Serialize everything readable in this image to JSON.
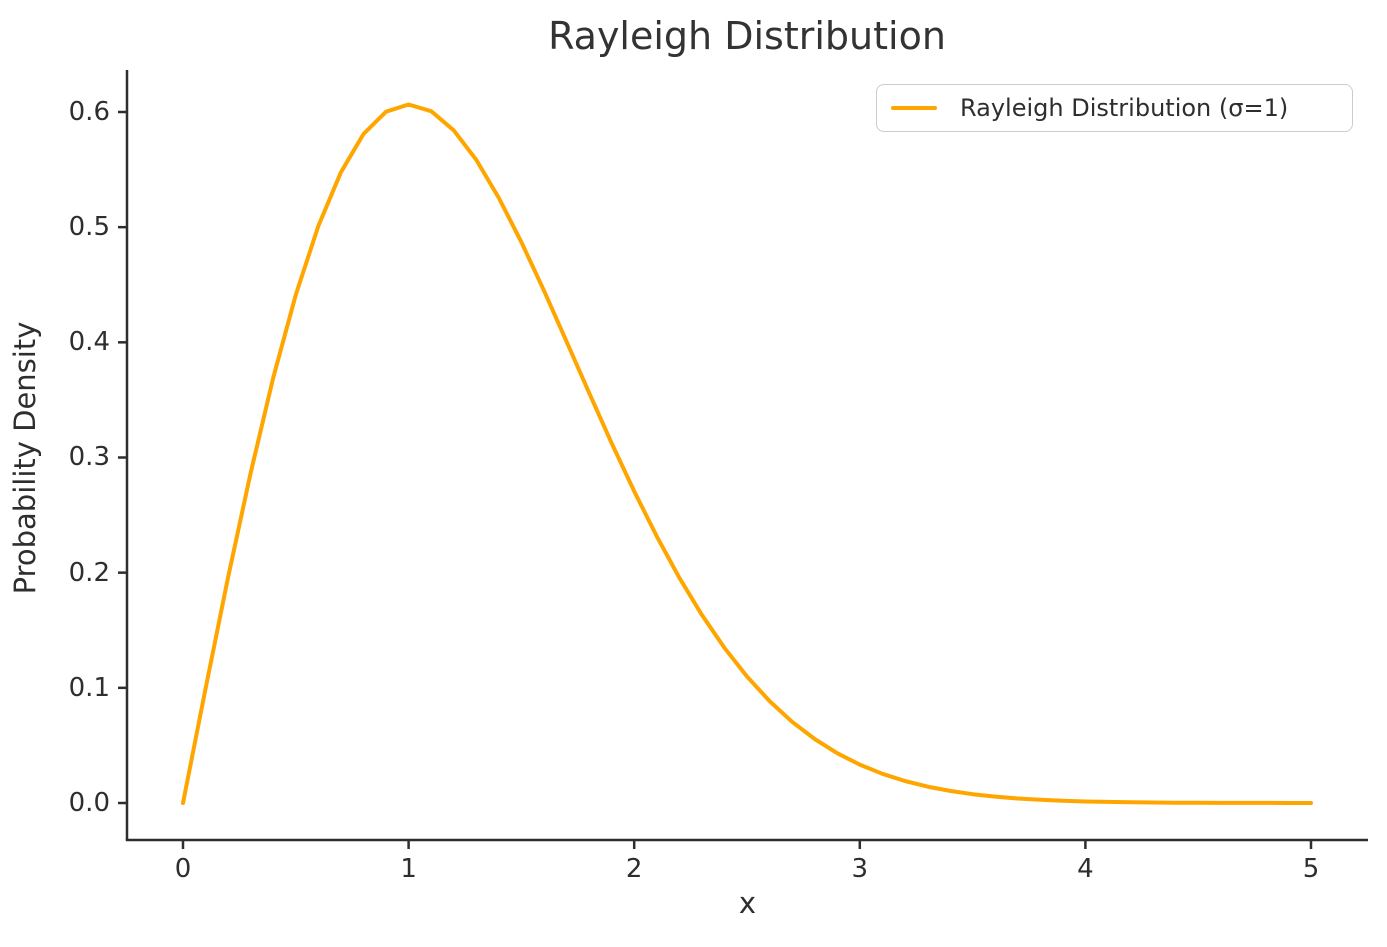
{
  "chart_data": {
    "type": "line",
    "title": "Rayleigh Distribution",
    "xlabel": "x",
    "ylabel": "Probability Density",
    "x_ticks": [
      0,
      1,
      2,
      3,
      4,
      5
    ],
    "y_ticks": [
      "0.0",
      "0.1",
      "0.2",
      "0.3",
      "0.4",
      "0.5",
      "0.6"
    ],
    "xlim": [
      0,
      5
    ],
    "ylim": [
      0.0,
      0.6
    ],
    "grid": false,
    "legend_position": "upper right",
    "series": [
      {
        "name": "Rayleigh Distribution (σ=1)",
        "color": "#FFA500",
        "x": [
          0.0,
          0.1,
          0.2,
          0.3,
          0.4,
          0.5,
          0.6,
          0.7,
          0.8,
          0.9,
          1.0,
          1.1,
          1.2,
          1.3,
          1.4,
          1.5,
          1.6,
          1.7,
          1.8,
          1.9,
          2.0,
          2.1,
          2.2,
          2.3,
          2.4,
          2.5,
          2.6,
          2.7,
          2.8,
          2.9,
          3.0,
          3.1,
          3.2,
          3.3,
          3.4,
          3.5,
          3.6,
          3.7,
          3.8,
          3.9,
          4.0,
          4.1,
          4.2,
          4.3,
          4.4,
          4.5,
          4.6,
          4.7,
          4.8,
          4.9,
          5.0
        ],
        "y": [
          0.0,
          0.0995,
          0.19604,
          0.2868,
          0.36924,
          0.44125,
          0.50112,
          0.54768,
          0.58092,
          0.60028,
          0.60653,
          0.60068,
          0.5841,
          0.55842,
          0.52544,
          0.48698,
          0.44486,
          0.40077,
          0.35622,
          0.3125,
          0.27067,
          0.23153,
          0.19563,
          0.16331,
          0.13472,
          0.10984,
          0.08852,
          0.07053,
          0.05555,
          0.04327,
          0.03333,
          0.02537,
          0.01912,
          0.01425,
          0.0105,
          0.00766,
          0.00552,
          0.00394,
          0.00278,
          0.00194,
          0.00134,
          0.00092,
          0.00062,
          0.00041,
          0.00027,
          0.00018,
          0.00012,
          7.5e-05,
          4.8e-05,
          3e-05,
          1.9e-05
        ]
      }
    ]
  },
  "colors": {
    "line": "#FFA500",
    "text": "#2e2e2e",
    "spine": "#2e2e2e",
    "legend_border": "#cccccc",
    "background": "#ffffff"
  },
  "legend": {
    "label": "Rayleigh Distribution (σ=1)"
  }
}
